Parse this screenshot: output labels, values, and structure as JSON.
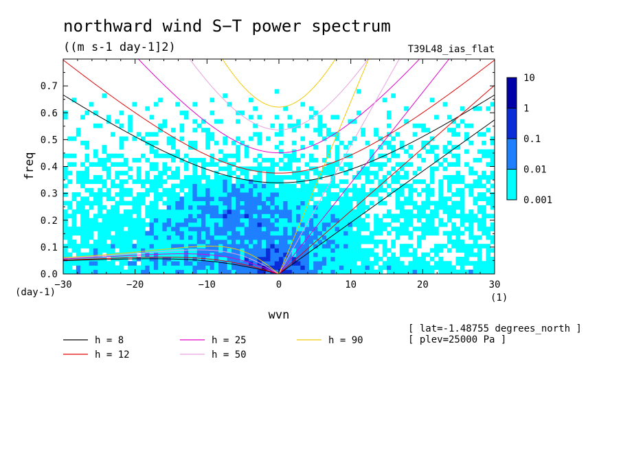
{
  "chart_data": {
    "type": "heatmap",
    "title": "northward wind S−T power spectrum",
    "subtitle": "((m s-1 day-1]2)",
    "experiment": "T39L48_ias_flat",
    "xlabel": "wvn",
    "ylabel": "freq",
    "x_unit": "(1)",
    "y_unit": "(day-1)",
    "xlim": [
      -30,
      30
    ],
    "ylim": [
      0,
      0.8
    ],
    "xticks": [
      -30,
      -20,
      -10,
      0,
      10,
      20,
      30
    ],
    "yticks": [
      0.0,
      0.1,
      0.2,
      0.3,
      0.4,
      0.5,
      0.6,
      0.7
    ],
    "xtick_labels": [
      "−30",
      "−20",
      "−10",
      "0",
      "10",
      "20",
      "30"
    ],
    "ytick_labels": [
      "0.0",
      "0.1",
      "0.2",
      "0.3",
      "0.4",
      "0.5",
      "0.6",
      "0.7"
    ],
    "colorbar": {
      "levels": [
        "0.001",
        "0.01",
        "0.1",
        "1",
        "10"
      ],
      "colors": [
        "#00ffff",
        "#1e7fff",
        "#0a2cd8",
        "#0000a8",
        "#5a0aa8"
      ]
    },
    "dispersion_curves": [
      {
        "name": "h = 8",
        "label": "h =  8",
        "h": 8,
        "color": "#000000"
      },
      {
        "name": "h = 12",
        "label": "h = 12",
        "h": 12,
        "color": "#e00000"
      },
      {
        "name": "h = 25",
        "label": "h = 25",
        "h": 25,
        "color": "#e000c8"
      },
      {
        "name": "h = 50",
        "label": "h = 50",
        "h": 50,
        "color": "#e8a0e0"
      },
      {
        "name": "h = 90",
        "label": "h = 90",
        "h": 90,
        "color": "#f0c800"
      }
    ],
    "annotations": [
      "[ lat=-1.48755 degrees_north ]",
      "[ plev=25000 Pa ]"
    ]
  }
}
